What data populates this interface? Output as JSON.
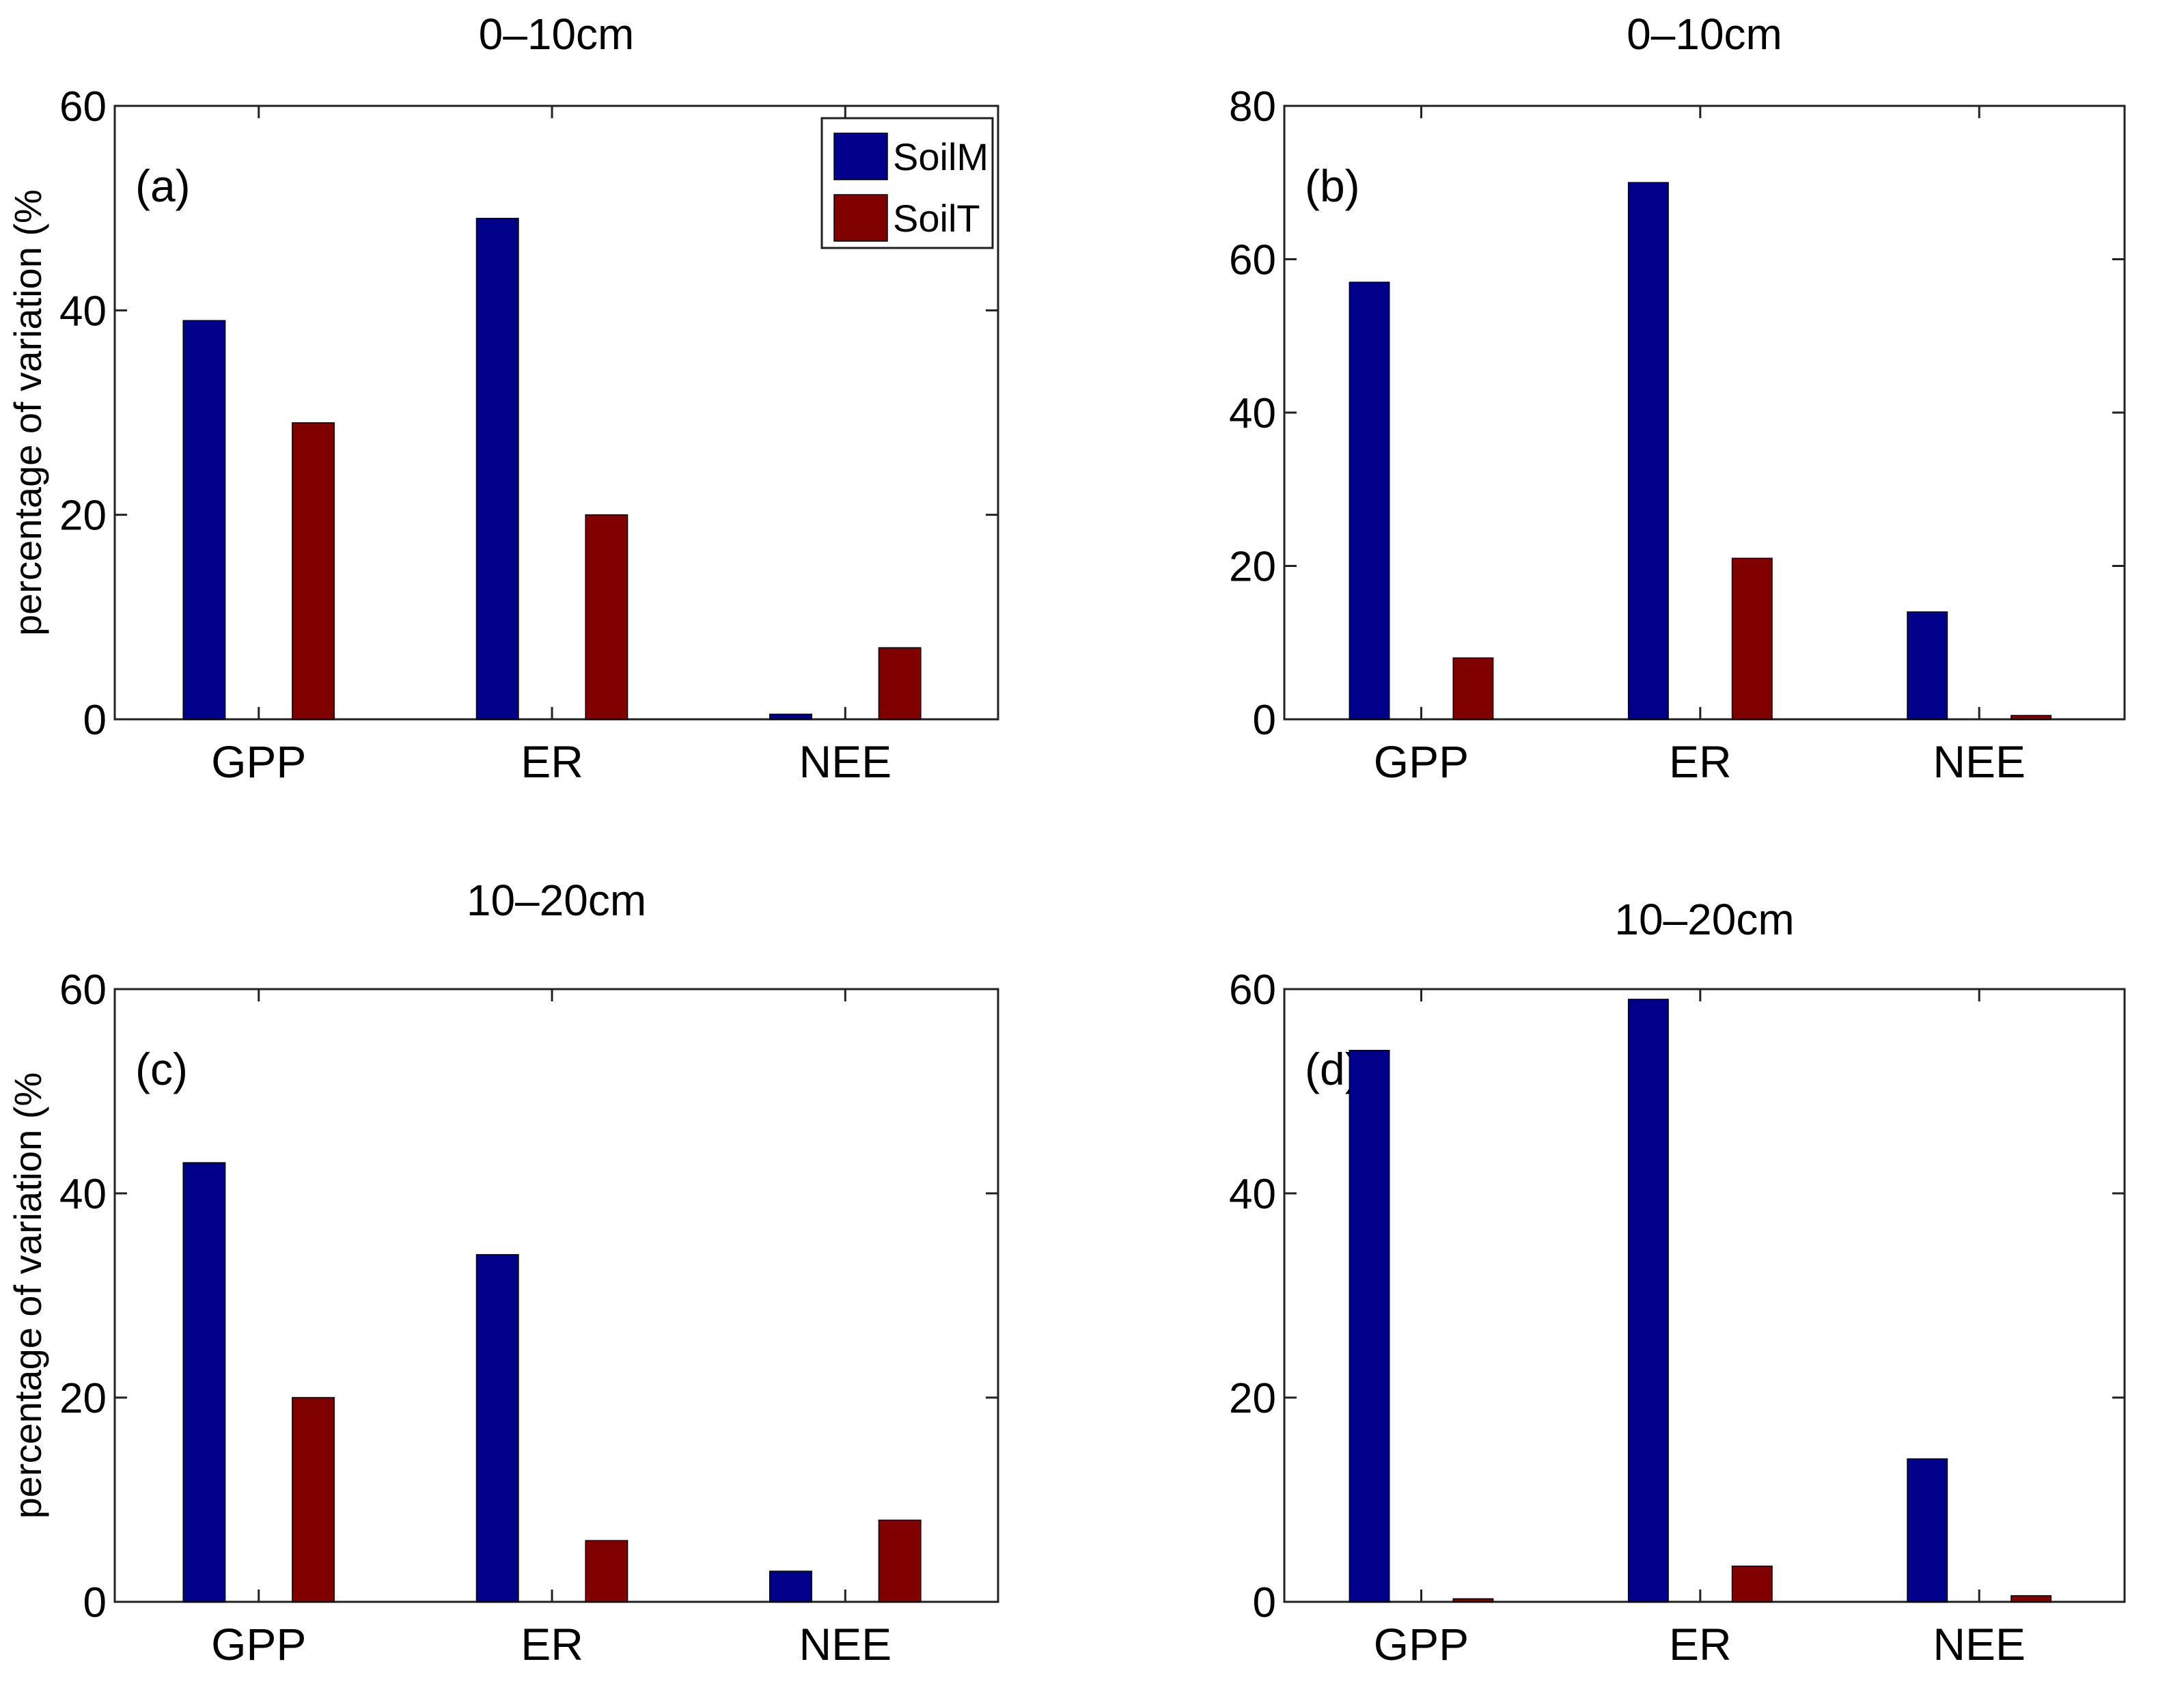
{
  "chart_data": [
    {
      "type": "bar",
      "panel_label": "(a)",
      "title": "0–10cm",
      "ylabel": "percentage of variation (%",
      "categories": [
        "GPP",
        "ER",
        "NEE"
      ],
      "ylim": [
        0,
        60
      ],
      "yticks": [
        "0",
        "20",
        "40",
        "60"
      ],
      "legend": {
        "position": "top-right",
        "entries": [
          "SoilM",
          "SoilT"
        ]
      },
      "series": [
        {
          "name": "SoilM",
          "color": "#00008B",
          "values": [
            39,
            49,
            0.5
          ]
        },
        {
          "name": "SoilT",
          "color": "#800000",
          "values": [
            29,
            20,
            7
          ]
        }
      ]
    },
    {
      "type": "bar",
      "panel_label": "(b)",
      "title": "0–10cm",
      "ylabel": "",
      "categories": [
        "GPP",
        "ER",
        "NEE"
      ],
      "ylim": [
        0,
        80
      ],
      "yticks": [
        "0",
        "20",
        "40",
        "60",
        "80"
      ],
      "series": [
        {
          "name": "SoilM",
          "color": "#00008B",
          "values": [
            57,
            70,
            14
          ]
        },
        {
          "name": "SoilT",
          "color": "#800000",
          "values": [
            8,
            21,
            0.5
          ]
        }
      ]
    },
    {
      "type": "bar",
      "panel_label": "(c)",
      "title": "10–20cm",
      "ylabel": "percentage of variation (%",
      "categories": [
        "GPP",
        "ER",
        "NEE"
      ],
      "ylim": [
        0,
        60
      ],
      "yticks": [
        "0",
        "20",
        "40",
        "60"
      ],
      "series": [
        {
          "name": "SoilM",
          "color": "#00008B",
          "values": [
            43,
            34,
            3
          ]
        },
        {
          "name": "SoilT",
          "color": "#800000",
          "values": [
            20,
            6,
            8
          ]
        }
      ]
    },
    {
      "type": "bar",
      "panel_label": "(d)",
      "title": "10–20cm",
      "ylabel": "",
      "categories": [
        "GPP",
        "ER",
        "NEE"
      ],
      "ylim": [
        0,
        60
      ],
      "yticks": [
        "0",
        "20",
        "40",
        "60"
      ],
      "series": [
        {
          "name": "SoilM",
          "color": "#00008B",
          "values": [
            54,
            59,
            14
          ]
        },
        {
          "name": "SoilT",
          "color": "#800000",
          "values": [
            0.3,
            3.5,
            0.6
          ]
        }
      ]
    }
  ]
}
